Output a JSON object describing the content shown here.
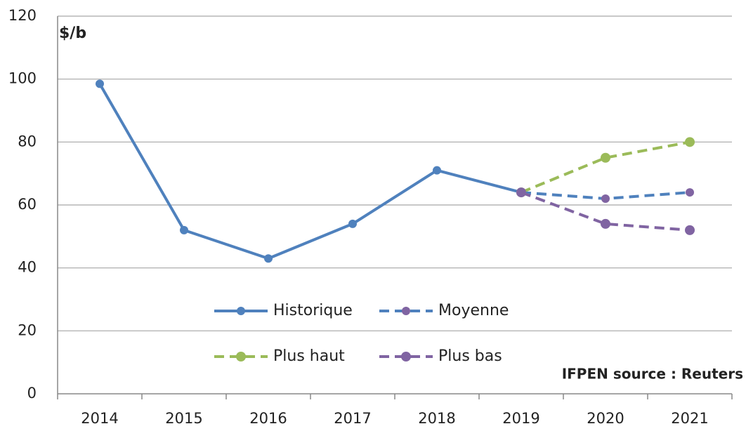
{
  "chart_data": {
    "type": "line",
    "y_label": "$/b",
    "annotation": "IFPEN source  : Reuters",
    "categories": [
      "2014",
      "2015",
      "2016",
      "2017",
      "2018",
      "2019",
      "2020",
      "2021"
    ],
    "series": [
      {
        "name": "Historique",
        "color": "#4f81bd",
        "marker_color": "#4f81bd",
        "dashed": false,
        "values": [
          98.5,
          52,
          43,
          54,
          71,
          64,
          null,
          null
        ]
      },
      {
        "name": "Moyenne",
        "color": "#4f81bd",
        "marker_color": "#8064a2",
        "dashed": true,
        "values": [
          null,
          null,
          null,
          null,
          null,
          64,
          62,
          64
        ]
      },
      {
        "name": "Plus haut",
        "color": "#9bbb59",
        "marker_color": "#9bbb59",
        "dashed": true,
        "values": [
          null,
          null,
          null,
          null,
          null,
          64,
          75,
          80
        ]
      },
      {
        "name": "Plus bas",
        "color": "#8064a2",
        "marker_color": "#8064a2",
        "dashed": true,
        "values": [
          null,
          null,
          null,
          null,
          null,
          64,
          54,
          52
        ]
      }
    ],
    "ylim": [
      0,
      120
    ],
    "yticks": [
      0,
      20,
      40,
      60,
      80,
      100,
      120
    ],
    "grid": true,
    "legend": "bottom"
  }
}
